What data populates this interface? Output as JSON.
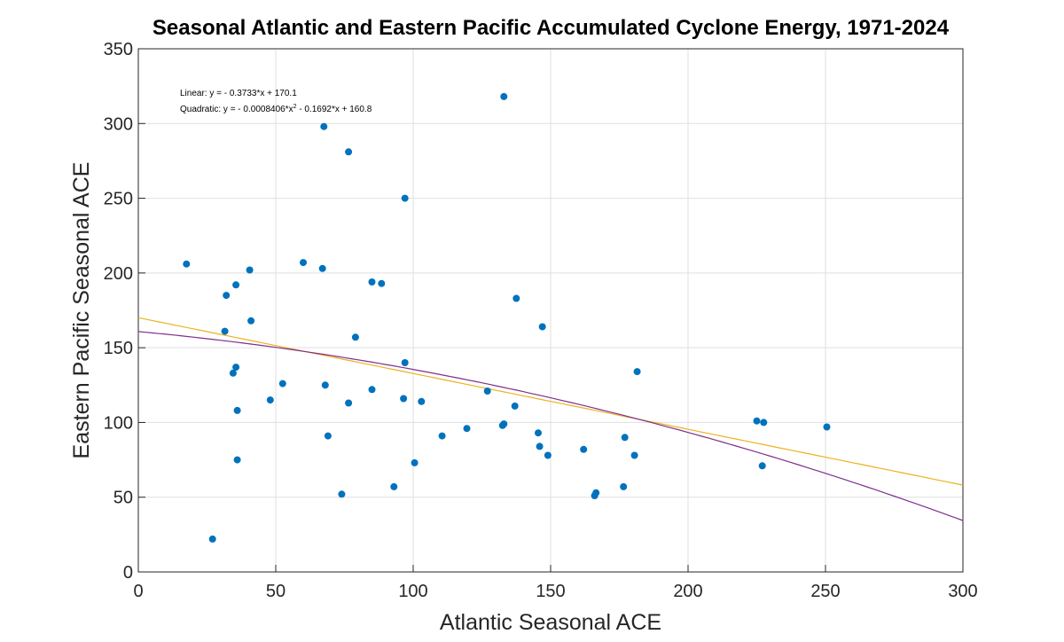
{
  "chart_data": {
    "type": "scatter",
    "title": "Seasonal Atlantic and Eastern Pacific Accumulated Cyclone Energy, 1971-2024",
    "xlabel": "Atlantic Seasonal ACE",
    "ylabel": "Eastern Pacific Seasonal ACE",
    "xlim": [
      0,
      300
    ],
    "ylim": [
      0,
      350
    ],
    "xticks": [
      0,
      50,
      100,
      150,
      200,
      250,
      300
    ],
    "yticks": [
      0,
      50,
      100,
      150,
      200,
      250,
      300,
      350
    ],
    "grid": true,
    "colors": {
      "points": "#0072bd",
      "linear": "#edb120",
      "quadratic": "#7e2f8e"
    },
    "annotations": {
      "linear_prefix": "Linear:  y = - 0.3733*x + 170.1",
      "quadratic_prefix": "Quadratic:  y = - 0.0008406*x",
      "quadratic_sup": "2",
      "quadratic_suffix": " - 0.1692*x + 160.8"
    },
    "fits": {
      "linear": {
        "a": 0,
        "b": -0.3733,
        "c": 170.1
      },
      "quadratic": {
        "a": -0.0008406,
        "b": -0.1692,
        "c": 160.8
      }
    },
    "points": [
      [
        17.5,
        206
      ],
      [
        27,
        22
      ],
      [
        31.5,
        161
      ],
      [
        32,
        185
      ],
      [
        34.5,
        133
      ],
      [
        35.5,
        137
      ],
      [
        35.5,
        192
      ],
      [
        36,
        108
      ],
      [
        36,
        75
      ],
      [
        40.5,
        202
      ],
      [
        41,
        168
      ],
      [
        48,
        115
      ],
      [
        52.5,
        126
      ],
      [
        60,
        207
      ],
      [
        67,
        203
      ],
      [
        67.5,
        298
      ],
      [
        68,
        125
      ],
      [
        69,
        91
      ],
      [
        74,
        52
      ],
      [
        76.5,
        281
      ],
      [
        76.5,
        113
      ],
      [
        79,
        157
      ],
      [
        85,
        122
      ],
      [
        85,
        194
      ],
      [
        88.5,
        193
      ],
      [
        93,
        57
      ],
      [
        96.5,
        116
      ],
      [
        97,
        140
      ],
      [
        97,
        250
      ],
      [
        100.5,
        73
      ],
      [
        103,
        114
      ],
      [
        110.5,
        91
      ],
      [
        119.5,
        96
      ],
      [
        127,
        121
      ],
      [
        132.5,
        98
      ],
      [
        133,
        99
      ],
      [
        133,
        318
      ],
      [
        137,
        111
      ],
      [
        137.5,
        183
      ],
      [
        145.5,
        93
      ],
      [
        146,
        84
      ],
      [
        147,
        164
      ],
      [
        149,
        78
      ],
      [
        162,
        82
      ],
      [
        166,
        51
      ],
      [
        166.5,
        53
      ],
      [
        176.5,
        57
      ],
      [
        177,
        90
      ],
      [
        180.5,
        78
      ],
      [
        181.5,
        134
      ],
      [
        225,
        101
      ],
      [
        227,
        71
      ],
      [
        227.5,
        100
      ],
      [
        250.5,
        97
      ]
    ]
  }
}
